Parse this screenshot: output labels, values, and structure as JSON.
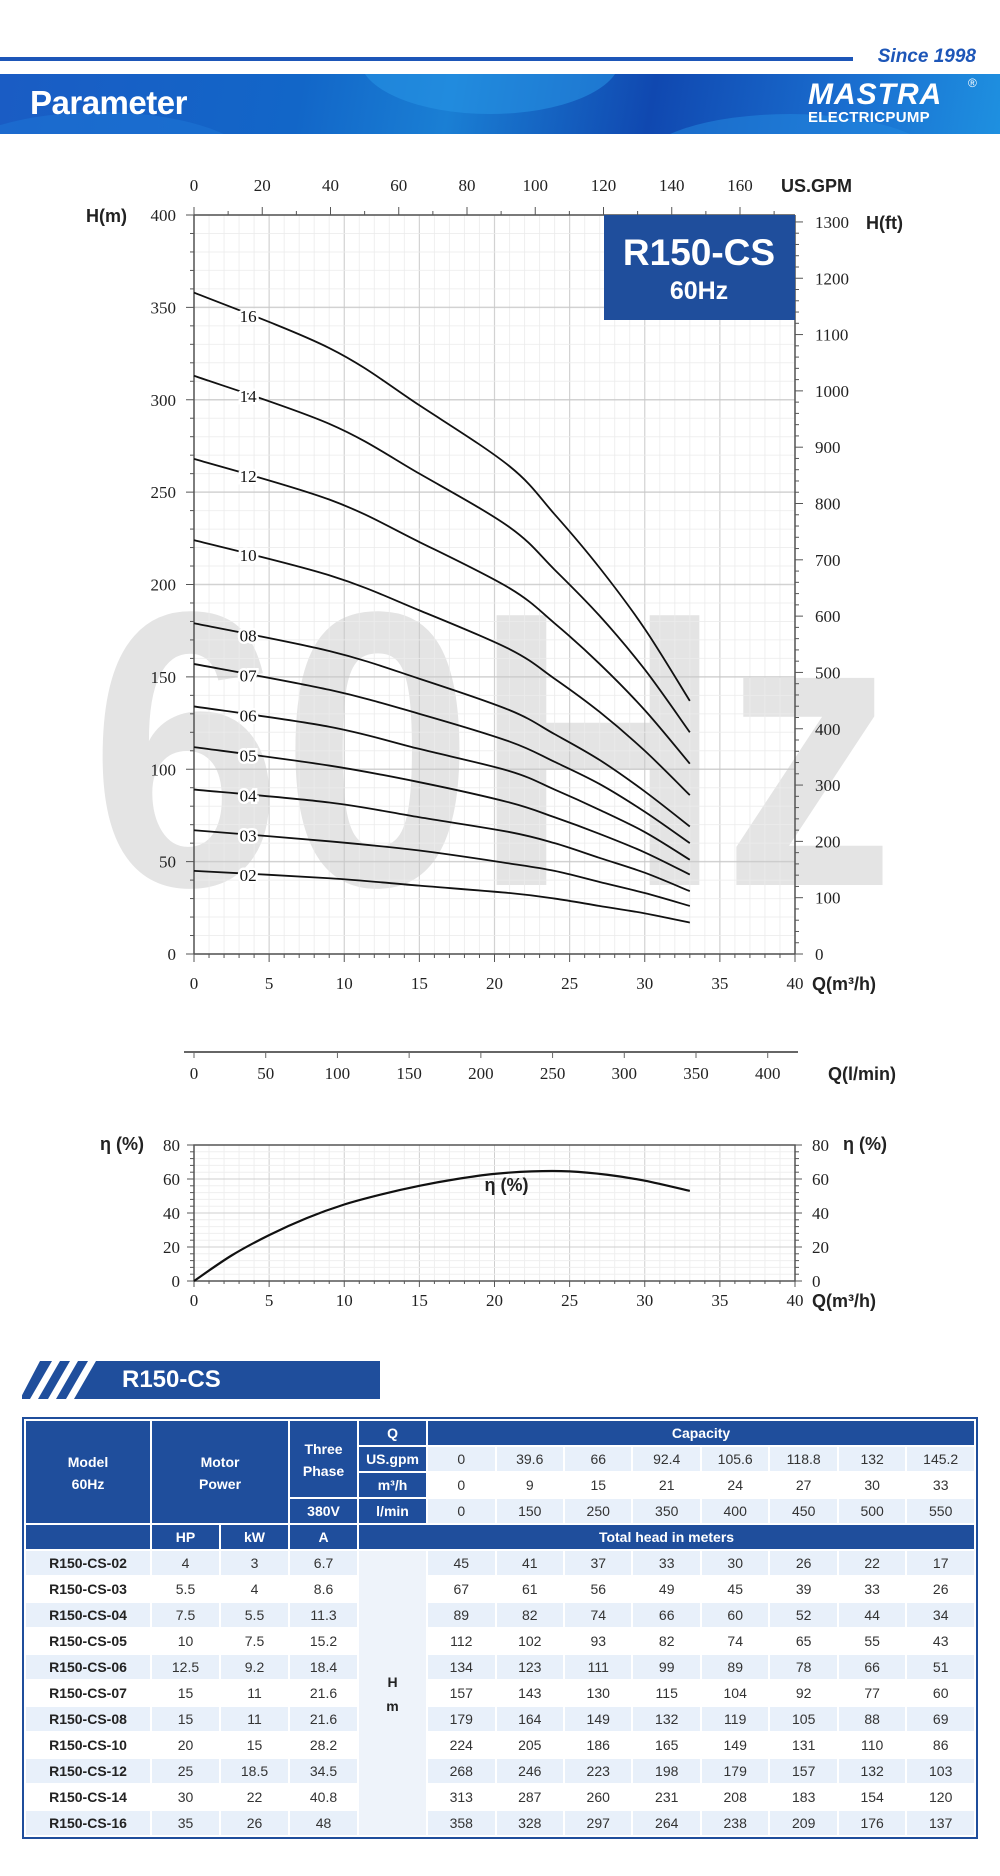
{
  "header": {
    "since": "Since 1998",
    "title": "Parameter",
    "logo_text": "MASTRA",
    "logo_registered": "®",
    "logo_sub": "ELECTRICPUMP"
  },
  "colors": {
    "brand_blue": "#1f4e9c",
    "banner_blue": "#1a5cc4",
    "watermark": "#e4e4e4",
    "light_row": "#e8f0fa"
  },
  "chart_data": [
    {
      "type": "line",
      "title": "R150-CS",
      "subtitle": "60Hz",
      "watermark": "60Hz",
      "xlabel": "Q(m³/h)",
      "ylabel": "H(m)",
      "xlim": [
        0,
        40
      ],
      "ylim": [
        0,
        400
      ],
      "xticks": [
        0,
        5,
        10,
        15,
        20,
        25,
        30,
        35,
        40
      ],
      "yticks": [
        0,
        50,
        100,
        150,
        200,
        250,
        300,
        350,
        400
      ],
      "grid": true,
      "top_axis": {
        "label": "US.GPM",
        "ticks": [
          0,
          20,
          40,
          60,
          80,
          100,
          120,
          140,
          160
        ]
      },
      "right_axis": {
        "label": "H(ft)",
        "ticks": [
          0,
          100,
          200,
          300,
          400,
          500,
          600,
          700,
          800,
          900,
          1000,
          1100,
          1200,
          1300
        ]
      },
      "second_x_axis": {
        "label": "Q(l/min)",
        "ticks": [
          0,
          50,
          100,
          150,
          200,
          250,
          300,
          350,
          400
        ]
      },
      "x": [
        0,
        9,
        15,
        21,
        24,
        27,
        30,
        33
      ],
      "series": [
        {
          "name": "02",
          "values": [
            45,
            41,
            37,
            33,
            30,
            26,
            22,
            17
          ]
        },
        {
          "name": "03",
          "values": [
            67,
            61,
            56,
            49,
            45,
            39,
            33,
            26
          ]
        },
        {
          "name": "04",
          "values": [
            89,
            82,
            74,
            66,
            60,
            52,
            44,
            34
          ]
        },
        {
          "name": "05",
          "values": [
            112,
            102,
            93,
            82,
            74,
            65,
            55,
            43
          ]
        },
        {
          "name": "06",
          "values": [
            134,
            123,
            111,
            99,
            89,
            78,
            66,
            51
          ]
        },
        {
          "name": "07",
          "values": [
            157,
            143,
            130,
            115,
            104,
            92,
            77,
            60
          ]
        },
        {
          "name": "08",
          "values": [
            179,
            164,
            149,
            132,
            119,
            105,
            88,
            69
          ]
        },
        {
          "name": "10",
          "values": [
            224,
            205,
            186,
            165,
            149,
            131,
            110,
            86
          ]
        },
        {
          "name": "12",
          "values": [
            268,
            246,
            223,
            198,
            179,
            157,
            132,
            103
          ]
        },
        {
          "name": "14",
          "values": [
            313,
            287,
            260,
            231,
            208,
            183,
            154,
            120
          ]
        },
        {
          "name": "16",
          "values": [
            358,
            328,
            297,
            264,
            238,
            209,
            176,
            137
          ]
        }
      ]
    },
    {
      "type": "line",
      "xlabel": "Q(m³/h)",
      "ylabel": "η (%)",
      "right_label": "η (%)",
      "xlim": [
        0,
        40
      ],
      "ylim": [
        0,
        80
      ],
      "xticks": [
        0,
        5,
        10,
        15,
        20,
        25,
        30,
        35,
        40
      ],
      "yticks": [
        0,
        20,
        40,
        60,
        80
      ],
      "grid": true,
      "series": [
        {
          "name": "η (%)",
          "x": [
            0,
            2.5,
            5,
            7.5,
            10,
            12.5,
            15,
            17.5,
            20,
            22.5,
            25,
            27.5,
            30,
            33
          ],
          "values": [
            0,
            15,
            27,
            37,
            45,
            51,
            56,
            60,
            63,
            64.5,
            64.5,
            62.5,
            59,
            53
          ]
        }
      ]
    }
  ],
  "section": {
    "title": "R150-CS"
  },
  "table": {
    "model_header": "Model",
    "model_sub": "60Hz",
    "motor_header": "Motor",
    "motor_sub": "Power",
    "phase_header": "Three",
    "phase_sub": "Phase",
    "voltage": "380V",
    "q_label": "Q",
    "capacity_label": "Capacity",
    "unit_rows": [
      {
        "unit": "US.gpm",
        "values": [
          "0",
          "39.6",
          "66",
          "92.4",
          "105.6",
          "118.8",
          "132",
          "145.2"
        ]
      },
      {
        "unit": "m³/h",
        "values": [
          "0",
          "9",
          "15",
          "21",
          "24",
          "27",
          "30",
          "33"
        ]
      },
      {
        "unit": "l/min",
        "values": [
          "0",
          "150",
          "250",
          "350",
          "400",
          "450",
          "500",
          "550"
        ]
      }
    ],
    "hp_label": "HP",
    "kw_label": "kW",
    "a_label": "A",
    "total_head_label": "Total head in meters",
    "h_label": "H",
    "m_label": "m",
    "rows": [
      {
        "model": "R150-CS-02",
        "hp": "4",
        "kw": "3",
        "a": "6.7",
        "heads": [
          "45",
          "41",
          "37",
          "33",
          "30",
          "26",
          "22",
          "17"
        ]
      },
      {
        "model": "R150-CS-03",
        "hp": "5.5",
        "kw": "4",
        "a": "8.6",
        "heads": [
          "67",
          "61",
          "56",
          "49",
          "45",
          "39",
          "33",
          "26"
        ]
      },
      {
        "model": "R150-CS-04",
        "hp": "7.5",
        "kw": "5.5",
        "a": "11.3",
        "heads": [
          "89",
          "82",
          "74",
          "66",
          "60",
          "52",
          "44",
          "34"
        ]
      },
      {
        "model": "R150-CS-05",
        "hp": "10",
        "kw": "7.5",
        "a": "15.2",
        "heads": [
          "112",
          "102",
          "93",
          "82",
          "74",
          "65",
          "55",
          "43"
        ]
      },
      {
        "model": "R150-CS-06",
        "hp": "12.5",
        "kw": "9.2",
        "a": "18.4",
        "heads": [
          "134",
          "123",
          "111",
          "99",
          "89",
          "78",
          "66",
          "51"
        ]
      },
      {
        "model": "R150-CS-07",
        "hp": "15",
        "kw": "11",
        "a": "21.6",
        "heads": [
          "157",
          "143",
          "130",
          "115",
          "104",
          "92",
          "77",
          "60"
        ]
      },
      {
        "model": "R150-CS-08",
        "hp": "15",
        "kw": "11",
        "a": "21.6",
        "heads": [
          "179",
          "164",
          "149",
          "132",
          "119",
          "105",
          "88",
          "69"
        ]
      },
      {
        "model": "R150-CS-10",
        "hp": "20",
        "kw": "15",
        "a": "28.2",
        "heads": [
          "224",
          "205",
          "186",
          "165",
          "149",
          "131",
          "110",
          "86"
        ]
      },
      {
        "model": "R150-CS-12",
        "hp": "25",
        "kw": "18.5",
        "a": "34.5",
        "heads": [
          "268",
          "246",
          "223",
          "198",
          "179",
          "157",
          "132",
          "103"
        ]
      },
      {
        "model": "R150-CS-14",
        "hp": "30",
        "kw": "22",
        "a": "40.8",
        "heads": [
          "313",
          "287",
          "260",
          "231",
          "208",
          "183",
          "154",
          "120"
        ]
      },
      {
        "model": "R150-CS-16",
        "hp": "35",
        "kw": "26",
        "a": "48",
        "heads": [
          "358",
          "328",
          "297",
          "264",
          "238",
          "209",
          "176",
          "137"
        ]
      }
    ]
  }
}
